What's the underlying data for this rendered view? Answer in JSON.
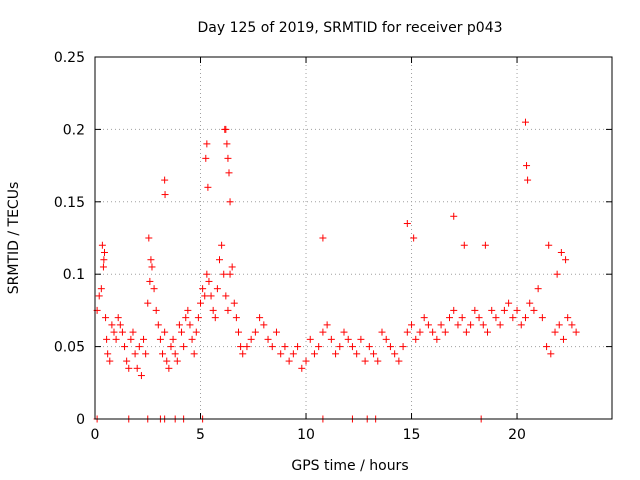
{
  "chart_data": {
    "type": "scatter",
    "title": "Day 125 of 2019, SRMTID for receiver p043",
    "xlabel": "GPS time / hours",
    "ylabel": "SRMTID / TECUs",
    "xlim": [
      0,
      24.5
    ],
    "ylim": [
      0,
      0.25
    ],
    "x_ticks": [
      0,
      5,
      10,
      15,
      20
    ],
    "x_tick_labels": [
      "0",
      "5",
      "10",
      "15",
      "20"
    ],
    "y_ticks": [
      0,
      0.05,
      0.1,
      0.15,
      0.2,
      0.25
    ],
    "y_tick_labels": [
      "0",
      "0.05",
      "0.1",
      "0.15",
      "0.2",
      "0.25"
    ],
    "grid": true,
    "marker": "+",
    "colors": {
      "series": "#ff0000",
      "grid": "#a0a0a0",
      "axis": "#000000"
    },
    "series": [
      {
        "name": "SRMTID",
        "x": [
          0.1,
          0.2,
          0.3,
          0.4,
          0.45,
          0.5,
          0.55,
          0.6,
          0.7,
          0.8,
          0.9,
          1.0,
          1.1,
          1.2,
          1.3,
          1.4,
          1.5,
          1.6,
          1.7,
          1.8,
          1.9,
          2.0,
          2.1,
          2.2,
          2.3,
          2.4,
          2.5,
          2.6,
          2.7,
          2.8,
          2.9,
          3.0,
          3.1,
          3.2,
          3.3,
          3.4,
          3.5,
          3.6,
          3.7,
          3.8,
          3.9,
          4.0,
          4.1,
          4.2,
          4.3,
          4.4,
          4.5,
          4.6,
          4.7,
          4.8,
          4.9,
          5.0,
          5.1,
          5.2,
          5.3,
          5.4,
          5.5,
          5.6,
          5.7,
          5.8,
          5.9,
          6.0,
          6.1,
          6.2,
          6.3,
          6.4,
          6.5,
          6.6,
          6.7,
          6.8,
          6.9,
          7.0,
          7.2,
          7.4,
          7.6,
          7.8,
          8.0,
          8.2,
          8.4,
          8.6,
          8.8,
          9.0,
          9.2,
          9.4,
          9.6,
          9.8,
          10.0,
          10.2,
          10.4,
          10.6,
          10.8,
          11.0,
          11.2,
          11.4,
          11.6,
          11.8,
          12.0,
          12.2,
          12.4,
          12.6,
          12.8,
          13.0,
          13.2,
          13.4,
          13.6,
          13.8,
          14.0,
          14.2,
          14.4,
          14.6,
          14.8,
          15.0,
          15.2,
          15.4,
          15.6,
          15.8,
          16.0,
          16.2,
          16.4,
          16.6,
          16.8,
          17.0,
          17.2,
          17.4,
          17.6,
          17.8,
          18.0,
          18.2,
          18.4,
          18.6,
          18.8,
          19.0,
          19.2,
          19.4,
          19.6,
          19.8,
          20.0,
          20.2,
          20.4,
          20.6,
          20.8,
          21.0,
          21.2,
          21.4,
          21.6,
          21.8,
          22.0,
          22.2,
          22.4,
          22.6,
          22.8,
          0.35,
          0.42,
          2.55,
          2.65,
          3.3,
          3.32,
          5.25,
          5.3,
          5.35,
          6.15,
          6.2,
          6.25,
          6.3,
          6.35,
          6.4,
          10.8,
          14.8,
          15.1,
          17.0,
          17.5,
          18.5,
          20.4,
          20.45,
          20.5,
          21.5,
          21.9,
          22.1,
          22.3
        ],
        "y": [
          0.075,
          0.085,
          0.09,
          0.105,
          0.115,
          0.07,
          0.055,
          0.045,
          0.04,
          0.065,
          0.06,
          0.055,
          0.07,
          0.065,
          0.06,
          0.05,
          0.04,
          0.035,
          0.055,
          0.06,
          0.045,
          0.035,
          0.05,
          0.03,
          0.055,
          0.045,
          0.08,
          0.095,
          0.105,
          0.09,
          0.075,
          0.065,
          0.055,
          0.045,
          0.06,
          0.04,
          0.035,
          0.05,
          0.055,
          0.045,
          0.04,
          0.065,
          0.06,
          0.05,
          0.07,
          0.075,
          0.065,
          0.055,
          0.045,
          0.06,
          0.07,
          0.08,
          0.09,
          0.085,
          0.1,
          0.095,
          0.085,
          0.075,
          0.07,
          0.09,
          0.11,
          0.12,
          0.1,
          0.085,
          0.075,
          0.1,
          0.105,
          0.08,
          0.07,
          0.06,
          0.05,
          0.045,
          0.05,
          0.055,
          0.06,
          0.07,
          0.065,
          0.055,
          0.05,
          0.06,
          0.045,
          0.05,
          0.04,
          0.045,
          0.05,
          0.035,
          0.04,
          0.055,
          0.045,
          0.05,
          0.06,
          0.065,
          0.055,
          0.045,
          0.05,
          0.06,
          0.055,
          0.05,
          0.045,
          0.055,
          0.04,
          0.05,
          0.045,
          0.04,
          0.06,
          0.055,
          0.05,
          0.045,
          0.04,
          0.05,
          0.06,
          0.065,
          0.055,
          0.06,
          0.07,
          0.065,
          0.06,
          0.055,
          0.065,
          0.06,
          0.07,
          0.075,
          0.065,
          0.07,
          0.06,
          0.065,
          0.075,
          0.07,
          0.065,
          0.06,
          0.075,
          0.07,
          0.065,
          0.075,
          0.08,
          0.07,
          0.075,
          0.065,
          0.07,
          0.08,
          0.075,
          0.09,
          0.07,
          0.05,
          0.045,
          0.06,
          0.065,
          0.055,
          0.07,
          0.065,
          0.06,
          0.12,
          0.11,
          0.125,
          0.11,
          0.165,
          0.155,
          0.18,
          0.19,
          0.16,
          0.2,
          0.2,
          0.19,
          0.18,
          0.17,
          0.15,
          0.125,
          0.135,
          0.125,
          0.14,
          0.12,
          0.12,
          0.205,
          0.175,
          0.165,
          0.12,
          0.1,
          0.115,
          0.11
        ]
      }
    ],
    "zero_value_markers_x": [
      0.1,
      1.6,
      2.5,
      3.1,
      3.3,
      3.8,
      4.2,
      5.1,
      10.8,
      12.2,
      12.9,
      13.3,
      18.3
    ]
  }
}
